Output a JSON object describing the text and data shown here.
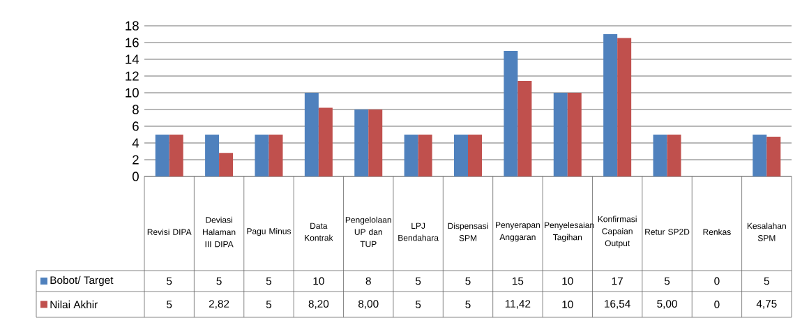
{
  "chart_data": {
    "type": "bar",
    "categories": [
      "Revisi DIPA",
      "Deviasi Halaman III DIPA",
      "Pagu Minus",
      "Data Kontrak",
      "Pengelolaan UP dan TUP",
      "LPJ Bendahara",
      "Dispensasi SPM",
      "Penyerapan Anggaran",
      "Penyelesaian Tagihan",
      "Konfirmasi Capaian Output",
      "Retur SP2D",
      "Renkas",
      "Kesalahan SPM"
    ],
    "series": [
      {
        "name": "Bobot/ Target",
        "color": "#4f81bd",
        "values": [
          5,
          5,
          5,
          10,
          8,
          5,
          5,
          15,
          10,
          17,
          5,
          0,
          5
        ],
        "value_labels": [
          "5",
          "5",
          "5",
          "10",
          "8",
          "5",
          "5",
          "15",
          "10",
          "17",
          "5",
          "0",
          "5"
        ]
      },
      {
        "name": "Nilai Akhir",
        "color": "#c0504d",
        "values": [
          5,
          2.82,
          5,
          8.2,
          8,
          5,
          5,
          11.42,
          10,
          16.54,
          5,
          0,
          4.75
        ],
        "value_labels": [
          "5",
          "2,82",
          "5",
          "8,20",
          "8,00",
          "5",
          "5",
          "11,42",
          "10",
          "16,54",
          "5,00",
          "0",
          "4,75"
        ]
      }
    ],
    "ylim": [
      0,
      18
    ],
    "yticks": [
      0,
      2,
      4,
      6,
      8,
      10,
      12,
      14,
      16,
      18
    ],
    "grid": "y",
    "legend": "bottom"
  }
}
